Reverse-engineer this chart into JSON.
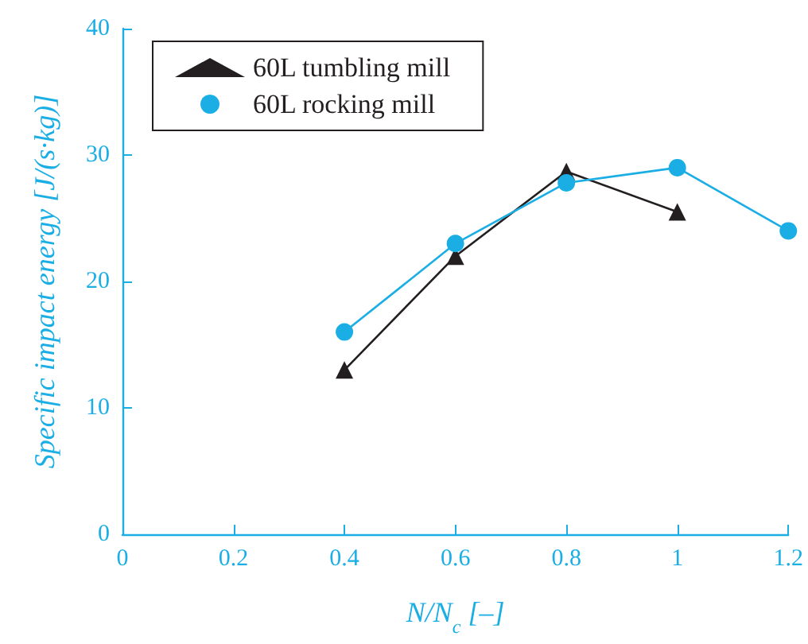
{
  "chart_data": {
    "type": "line",
    "xlabel": "N/N$_{c}$ [–]",
    "ylabel": "Specific impact energy [J/(s·kg)]",
    "xlim": [
      0,
      1.2
    ],
    "xticks": [
      {
        "value": 0,
        "label": "0"
      },
      0.2,
      0.4,
      0.6,
      0.8,
      {
        "value": 1,
        "label": "1"
      },
      1.2
    ],
    "ylim": [
      0,
      40
    ],
    "yticks": [
      0,
      10,
      20,
      30,
      40
    ],
    "grid": false,
    "legend": "top left",
    "series": [
      {
        "name": "60L tumbling mill",
        "color": "#231f20",
        "marker": "triangle",
        "x": [
          0.4,
          0.6,
          0.8,
          1.0
        ],
        "values": [
          13,
          22,
          28.7,
          25.5
        ]
      },
      {
        "name": "60L rocking mill",
        "color": "#1aaee5",
        "marker": "circle",
        "x": [
          0.4,
          0.6,
          0.8,
          1.0,
          1.2
        ],
        "values": [
          16,
          23,
          27.8,
          29,
          24
        ]
      }
    ]
  }
}
